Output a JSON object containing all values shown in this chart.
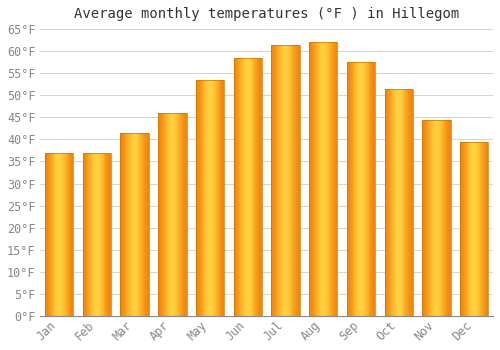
{
  "title": "Average monthly temperatures (°F ) in Hillegom",
  "months": [
    "Jan",
    "Feb",
    "Mar",
    "Apr",
    "May",
    "Jun",
    "Jul",
    "Aug",
    "Sep",
    "Oct",
    "Nov",
    "Dec"
  ],
  "values": [
    37,
    37,
    41.5,
    46,
    53.5,
    58.5,
    61.5,
    62,
    57.5,
    51.5,
    44.5,
    39.5
  ],
  "bar_color_center": "#FFB700",
  "bar_color_edge": "#F07800",
  "bar_color_light": "#FFD040",
  "background_color": "#FFFFFF",
  "grid_color": "#CCCCCC",
  "text_color": "#888888",
  "ylim": [
    0,
    65
  ],
  "yticks": [
    0,
    5,
    10,
    15,
    20,
    25,
    30,
    35,
    40,
    45,
    50,
    55,
    60,
    65
  ],
  "title_fontsize": 10,
  "tick_fontsize": 8.5,
  "bar_width": 0.75
}
